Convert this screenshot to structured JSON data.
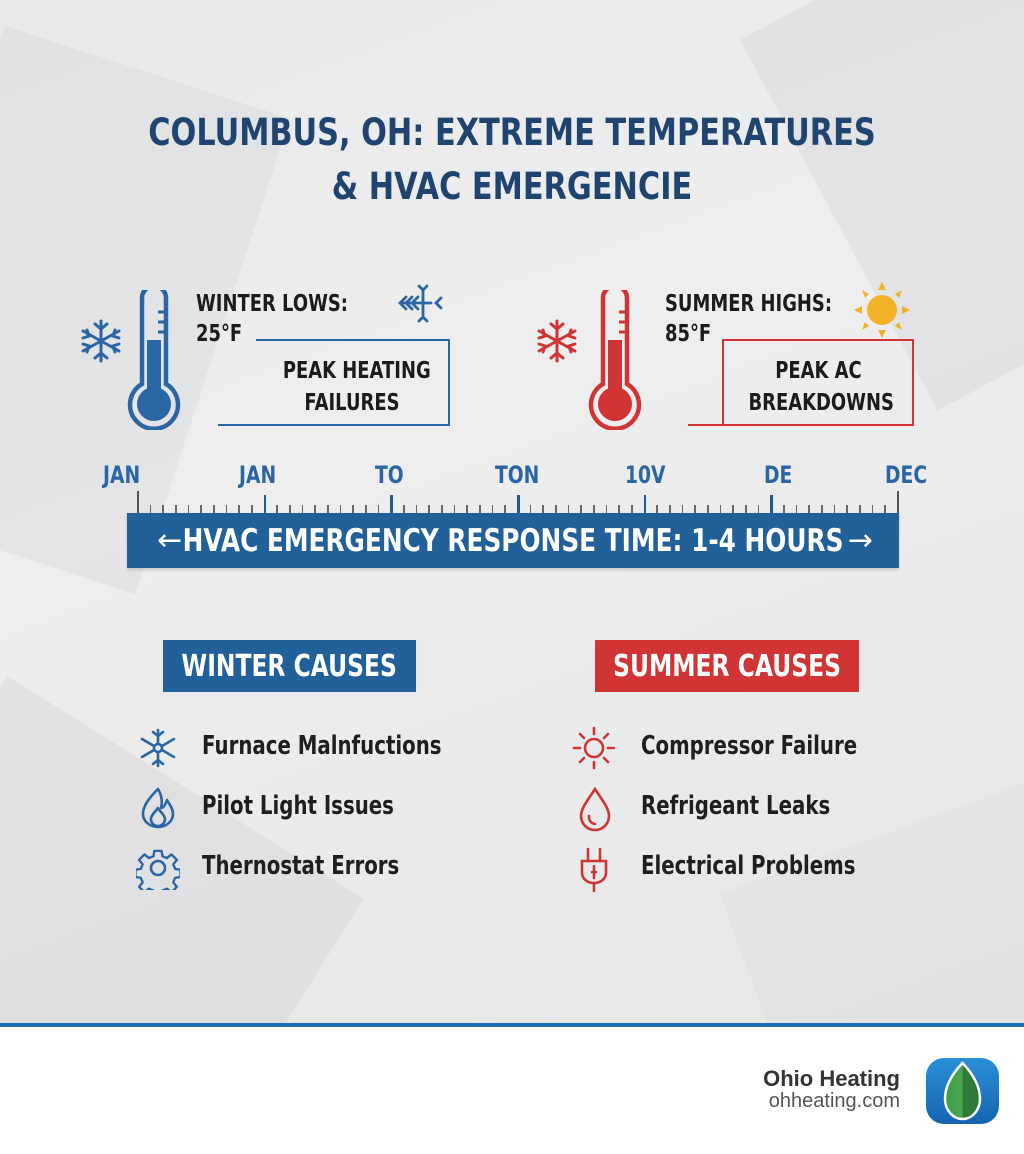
{
  "title": {
    "line1": "COLUMBUS, OH: EXTREME TEMPERATURES",
    "line2": "& HVAC EMERGENCIE"
  },
  "colors": {
    "winter_blue": "#2a66a3",
    "summer_red": "#d03434",
    "title_navy": "#1f4470",
    "band_blue": "#22609a",
    "sun_yellow": "#f2b32b",
    "rule_blue": "#1a6fb4"
  },
  "winter": {
    "label": "WINTER LOWS:",
    "temp": "25°F",
    "peak_line1": "PEAK HEATING",
    "peak_line2": "FAILURES",
    "icons": [
      "snowflake-icon",
      "thermometer-icon",
      "frost-arrows-icon"
    ]
  },
  "summer": {
    "label": "SUMMER HIGHS:",
    "temp": "85°F",
    "peak_line1": "PEAK AC",
    "peak_line2": "BREAKDOWNS",
    "icons": [
      "snowflake-icon",
      "thermometer-icon",
      "sun-icon"
    ]
  },
  "timeline": {
    "labels": [
      "JAN",
      "JAN",
      "TO",
      "TON",
      "10V",
      "DE",
      "DEC"
    ],
    "band_text": "HVAC EMERGENCY RESPONSE TIME: 1-4 HOURS",
    "left_arrow": "←",
    "right_arrow": "→"
  },
  "winter_causes": {
    "header": "WINTER CAUSES",
    "items": [
      {
        "label": "Furnace Malnfuctions",
        "icon": "snowflake-icon"
      },
      {
        "label": "Pilot Light Issues",
        "icon": "flame-icon"
      },
      {
        "label": "Thernostat Errors",
        "icon": "gear-icon"
      }
    ]
  },
  "summer_causes": {
    "header": "SUMMER CAUSES",
    "items": [
      {
        "label": "Compressor Failure",
        "icon": "sun-icon"
      },
      {
        "label": "Refrigeant Leaks",
        "icon": "droplet-icon"
      },
      {
        "label": "Electrical Problems",
        "icon": "plug-icon"
      }
    ]
  },
  "footer": {
    "brand_name": "Ohio Heating",
    "brand_url": "ohheating.com",
    "logo_icon": "leaf-icon"
  }
}
